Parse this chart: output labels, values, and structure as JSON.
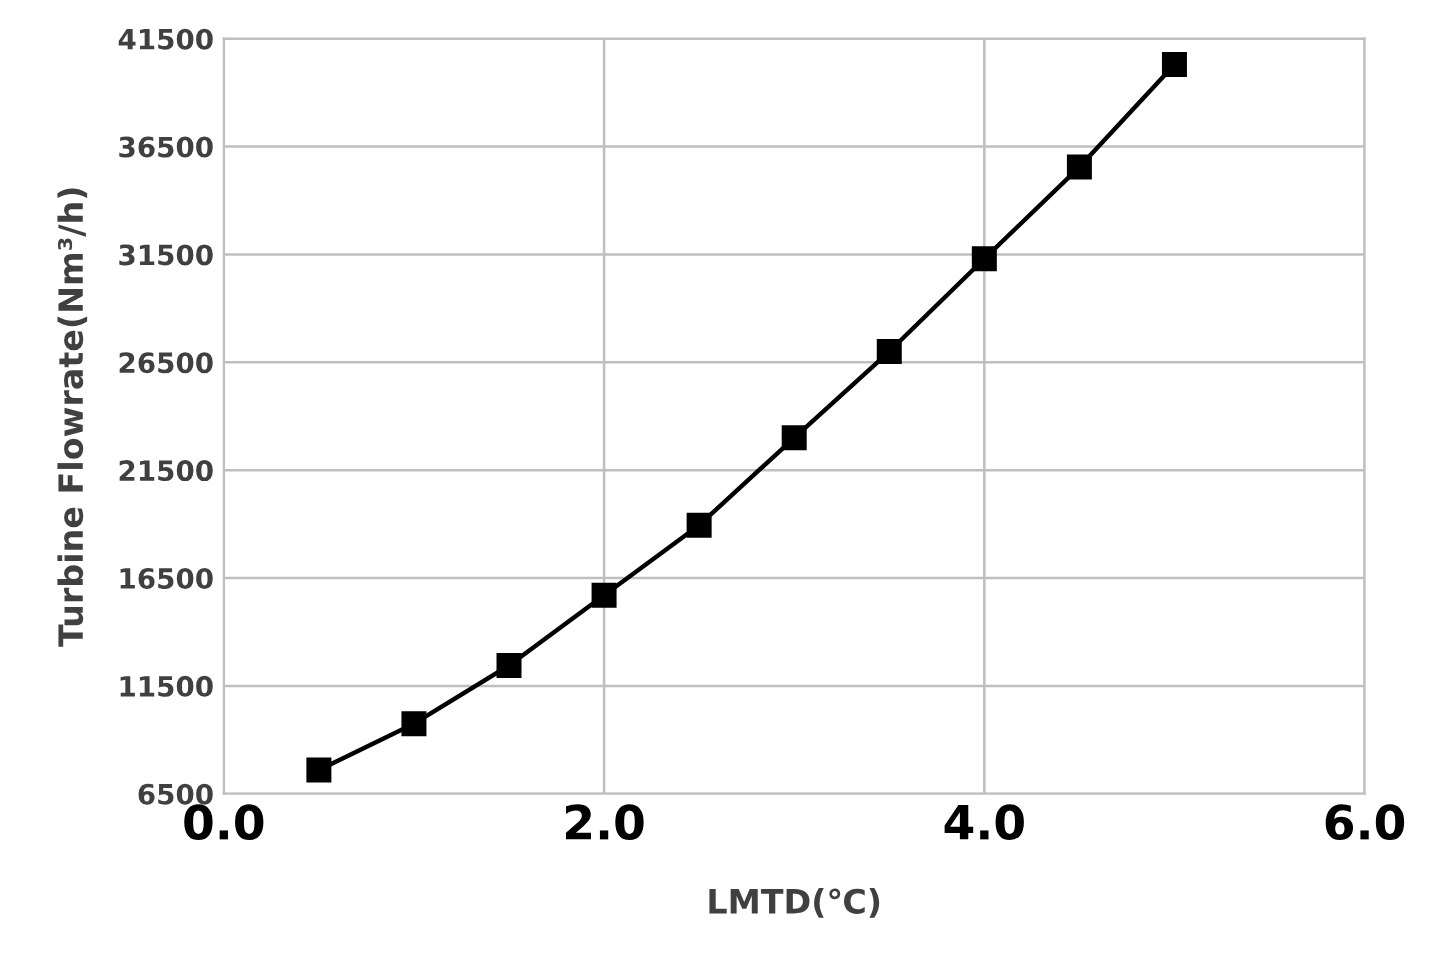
{
  "chart_data": {
    "type": "line",
    "xlabel": "LMTD(℃)",
    "ylabel": "Turbine Flowrate(Nm³/h)",
    "x": [
      0.5,
      1.0,
      1.5,
      2.0,
      2.5,
      3.0,
      3.5,
      4.0,
      4.5,
      5.0
    ],
    "series": [
      {
        "color": "#000000",
        "values": [
          7600,
          9750,
          12450,
          15700,
          18950,
          23000,
          27000,
          31300,
          35550,
          40300
        ]
      }
    ],
    "xlim": [
      0,
      6
    ],
    "xticks": [
      {
        "value": 0,
        "label": "0.0"
      },
      {
        "value": 2,
        "label": "2.0"
      },
      {
        "value": 4,
        "label": "4.0"
      },
      {
        "value": 6,
        "label": "6.0"
      }
    ],
    "ylim": [
      6500,
      41500
    ],
    "yticks": [
      6500,
      11500,
      16500,
      21500,
      26500,
      31500,
      36500,
      41500
    ],
    "grid": true,
    "marker": "square",
    "line_style": "solid"
  }
}
